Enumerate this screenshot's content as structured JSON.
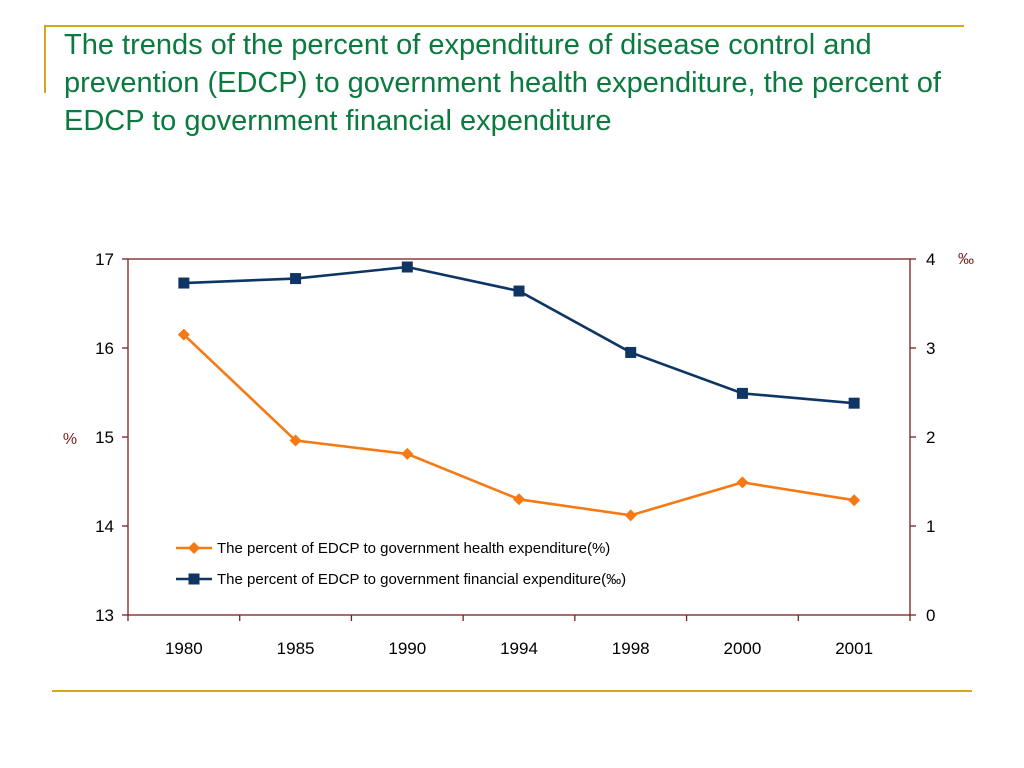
{
  "title": "The trends of the percent of expenditure of disease control and prevention (EDCP) to government health expenditure, the percent of EDCP to government financial expenditure",
  "colors": {
    "title": "#0b7a3e",
    "decor_line": "#d4a520",
    "health_series": "#f57a14",
    "financial_series": "#0e3563",
    "axis": "#7a1f1f"
  },
  "chart_data": {
    "type": "line",
    "title": "",
    "x": [
      "1980",
      "1985",
      "1990",
      "1994",
      "1998",
      "2000",
      "2001"
    ],
    "y_left": {
      "label": "%",
      "range": [
        13,
        17
      ],
      "ticks": [
        "13",
        "14",
        "15",
        "16",
        "17"
      ]
    },
    "y_right": {
      "label": "‰",
      "range": [
        0,
        4
      ],
      "ticks": [
        "0",
        "1",
        "2",
        "3",
        "4"
      ]
    },
    "series": [
      {
        "name": "The percent of EDCP to government health expenditure(%)",
        "axis": "left",
        "marker": "diamond",
        "values": [
          16.15,
          14.96,
          14.81,
          14.3,
          14.12,
          14.49,
          14.29
        ]
      },
      {
        "name": "The percent of EDCP to government financial expenditure(‰)",
        "axis": "right",
        "marker": "square",
        "values": [
          3.73,
          3.78,
          3.91,
          3.64,
          2.95,
          2.49,
          2.38
        ]
      }
    ],
    "grid": false,
    "legend_position": "lower-center-inside"
  }
}
